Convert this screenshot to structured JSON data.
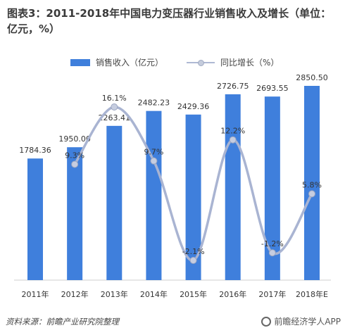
{
  "title": "图表3：2011-2018年中国电力变压器行业销售收入及增长（单位：亿元，%）",
  "source": "资料来源：前瞻产业研究院整理",
  "watermark": "前瞻经济学人APP",
  "colors": {
    "bar": "#3f7fdc",
    "line": "#a9b4d2",
    "point": "#c6cde0"
  },
  "chart_data": {
    "type": "bar",
    "categories": [
      "2011年",
      "2012年",
      "2013年",
      "2014年",
      "2015年",
      "2016年",
      "2017年",
      "2018年E"
    ],
    "series": [
      {
        "name": "销售收入（亿元）",
        "type": "bar",
        "values": [
          1784.36,
          1950.0,
          2263.41,
          2482.23,
          2429.36,
          2726.75,
          2693.55,
          2850.5
        ],
        "labels": [
          "1784.36",
          "1950.00",
          "2263.41",
          "2482.23",
          "2429.36",
          "2726.75",
          "2693.55",
          "2850.50"
        ]
      },
      {
        "name": "同比增长（%）",
        "type": "line",
        "values": [
          null,
          9.3,
          16.1,
          9.7,
          -2.1,
          12.2,
          -1.2,
          5.8
        ],
        "labels": [
          "",
          "9.3%",
          "16.1%",
          "9.7%",
          "-2.1%",
          "12.2%",
          "-1.2%",
          "5.8%"
        ]
      }
    ],
    "legend": "top-center",
    "grid": false
  }
}
